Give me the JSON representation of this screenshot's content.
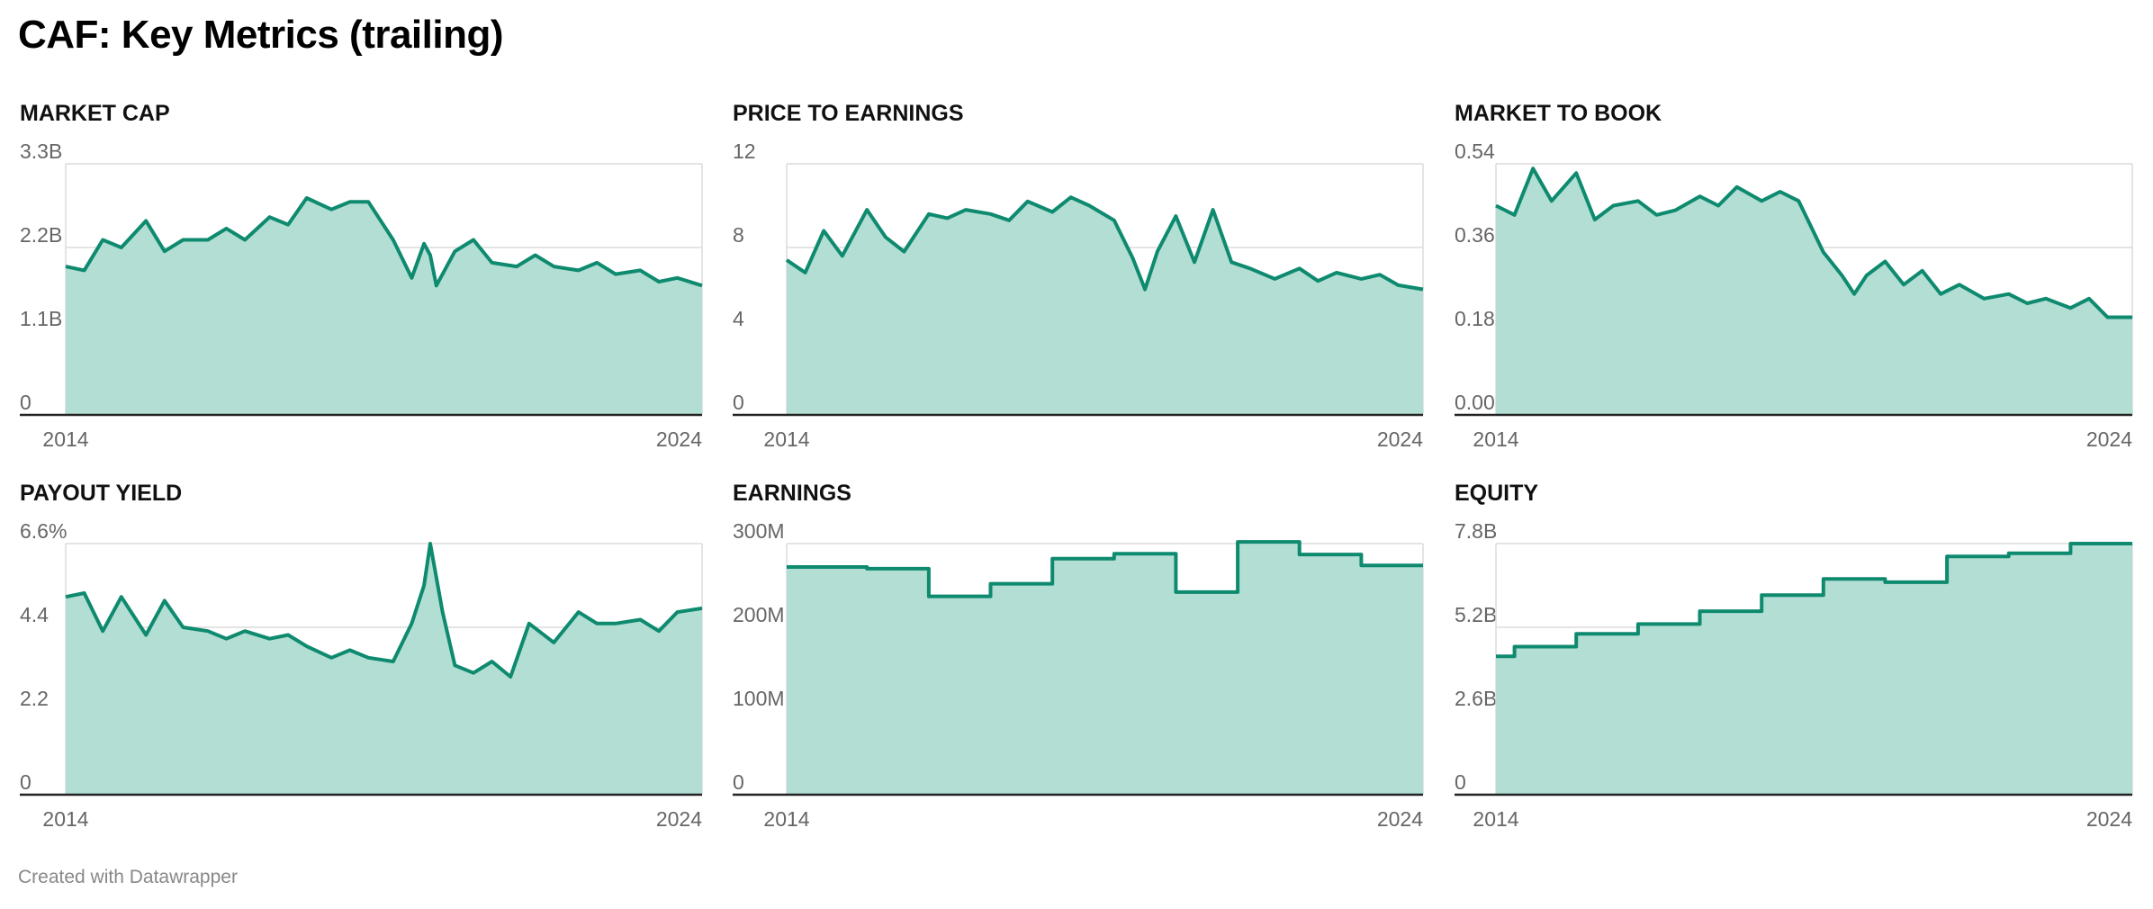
{
  "title": "CAF: Key Metrics (trailing)",
  "footer": "Created with Datawrapper",
  "colors": {
    "line": "#0e8a6f",
    "fill": "#b2ded4",
    "grid": "#dcdcdc",
    "axis": "#222222"
  },
  "chart_data": [
    {
      "type": "area",
      "title": "MARKET CAP",
      "x_labels": [
        "2014",
        "2024"
      ],
      "x_range": [
        2013.7,
        2024.0
      ],
      "y_ticks": [
        0,
        1.1,
        2.2,
        3.3
      ],
      "y_tick_labels": [
        "0",
        "1.1B",
        "2.2B",
        "3.3B"
      ],
      "ylim": [
        0,
        3.3
      ],
      "unit": "B",
      "x": [
        2013.7,
        2014.0,
        2014.3,
        2014.6,
        2015.0,
        2015.3,
        2015.6,
        2016.0,
        2016.3,
        2016.6,
        2017.0,
        2017.3,
        2017.6,
        2018.0,
        2018.3,
        2018.6,
        2019.0,
        2019.3,
        2019.5,
        2019.6,
        2019.7,
        2020.0,
        2020.3,
        2020.6,
        2021.0,
        2021.3,
        2021.6,
        2022.0,
        2022.3,
        2022.6,
        2023.0,
        2023.3,
        2023.6,
        2024.0
      ],
      "y": [
        1.95,
        1.9,
        2.3,
        2.2,
        2.55,
        2.15,
        2.3,
        2.3,
        2.45,
        2.3,
        2.6,
        2.5,
        2.85,
        2.7,
        2.8,
        2.8,
        2.3,
        1.8,
        2.25,
        2.1,
        1.7,
        2.15,
        2.3,
        2.0,
        1.95,
        2.1,
        1.95,
        1.9,
        2.0,
        1.85,
        1.9,
        1.75,
        1.8,
        1.7
      ]
    },
    {
      "type": "area",
      "title": "PRICE TO EARNINGS",
      "x_labels": [
        "2014",
        "2024"
      ],
      "x_range": [
        2013.7,
        2024.0
      ],
      "y_ticks": [
        0,
        4,
        8,
        12
      ],
      "y_tick_labels": [
        "0",
        "4",
        "8",
        "12"
      ],
      "ylim": [
        0,
        12
      ],
      "unit": "",
      "x": [
        2013.7,
        2014.0,
        2014.3,
        2014.6,
        2015.0,
        2015.3,
        2015.6,
        2016.0,
        2016.3,
        2016.6,
        2017.0,
        2017.3,
        2017.6,
        2018.0,
        2018.3,
        2018.6,
        2019.0,
        2019.3,
        2019.5,
        2019.7,
        2020.0,
        2020.3,
        2020.6,
        2020.9,
        2021.2,
        2021.6,
        2022.0,
        2022.3,
        2022.6,
        2023.0,
        2023.3,
        2023.6,
        2024.0
      ],
      "y": [
        7.4,
        6.8,
        8.8,
        7.6,
        9.8,
        8.5,
        7.8,
        9.6,
        9.4,
        9.8,
        9.6,
        9.3,
        10.2,
        9.7,
        10.4,
        10.0,
        9.3,
        7.5,
        6.0,
        7.8,
        9.5,
        7.3,
        9.8,
        7.3,
        7.0,
        6.5,
        7.0,
        6.4,
        6.8,
        6.5,
        6.7,
        6.2,
        6.0
      ]
    },
    {
      "type": "area",
      "title": "MARKET TO BOOK",
      "x_labels": [
        "2014",
        "2024"
      ],
      "x_range": [
        2013.7,
        2024.0
      ],
      "y_ticks": [
        0,
        0.18,
        0.36,
        0.54
      ],
      "y_tick_labels": [
        "0.00",
        "0.18",
        "0.36",
        "0.54"
      ],
      "ylim": [
        0,
        0.54
      ],
      "unit": "",
      "x": [
        2013.7,
        2014.0,
        2014.3,
        2014.6,
        2015.0,
        2015.3,
        2015.6,
        2016.0,
        2016.3,
        2016.6,
        2017.0,
        2017.3,
        2017.6,
        2018.0,
        2018.3,
        2018.6,
        2019.0,
        2019.3,
        2019.5,
        2019.7,
        2020.0,
        2020.3,
        2020.6,
        2020.9,
        2021.2,
        2021.6,
        2022.0,
        2022.3,
        2022.6,
        2023.0,
        2023.3,
        2023.6,
        2024.0
      ],
      "y": [
        0.45,
        0.43,
        0.53,
        0.46,
        0.52,
        0.42,
        0.45,
        0.46,
        0.43,
        0.44,
        0.47,
        0.45,
        0.49,
        0.46,
        0.48,
        0.46,
        0.35,
        0.3,
        0.26,
        0.3,
        0.33,
        0.28,
        0.31,
        0.26,
        0.28,
        0.25,
        0.26,
        0.24,
        0.25,
        0.23,
        0.25,
        0.21,
        0.21
      ]
    },
    {
      "type": "area",
      "title": "PAYOUT YIELD",
      "x_labels": [
        "2014",
        "2024"
      ],
      "x_range": [
        2013.7,
        2024.0
      ],
      "y_ticks": [
        0,
        2.2,
        4.4,
        6.6
      ],
      "y_tick_labels": [
        "0",
        "2.2",
        "4.4",
        "6.6%"
      ],
      "ylim": [
        0,
        6.6
      ],
      "unit": "%",
      "x": [
        2013.7,
        2014.0,
        2014.3,
        2014.6,
        2015.0,
        2015.3,
        2015.6,
        2016.0,
        2016.3,
        2016.6,
        2017.0,
        2017.3,
        2017.6,
        2018.0,
        2018.3,
        2018.6,
        2019.0,
        2019.3,
        2019.5,
        2019.6,
        2019.8,
        2020.0,
        2020.3,
        2020.6,
        2020.9,
        2021.2,
        2021.6,
        2022.0,
        2022.3,
        2022.6,
        2023.0,
        2023.3,
        2023.6,
        2024.0
      ],
      "y": [
        5.2,
        5.3,
        4.3,
        5.2,
        4.2,
        5.1,
        4.4,
        4.3,
        4.1,
        4.3,
        4.1,
        4.2,
        3.9,
        3.6,
        3.8,
        3.6,
        3.5,
        4.5,
        5.5,
        6.6,
        4.8,
        3.4,
        3.2,
        3.5,
        3.1,
        4.5,
        4.0,
        4.8,
        4.5,
        4.5,
        4.6,
        4.3,
        4.8,
        4.9
      ]
    },
    {
      "type": "area",
      "title": "EARNINGS",
      "x_labels": [
        "2014",
        "2024"
      ],
      "x_range": [
        2013.7,
        2024.0
      ],
      "y_ticks": [
        0,
        100,
        200,
        300
      ],
      "y_tick_labels": [
        "0",
        "100M",
        "200M",
        "300M"
      ],
      "ylim": [
        0,
        300
      ],
      "unit": "M",
      "step": true,
      "x": [
        2013.7,
        2015.0,
        2016.0,
        2017.0,
        2018.0,
        2019.0,
        2020.0,
        2021.0,
        2022.0,
        2023.0
      ],
      "y": [
        272,
        270,
        237,
        252,
        282,
        288,
        242,
        302,
        287,
        274
      ],
      "x_end": 2024.0
    },
    {
      "type": "area",
      "title": "EQUITY",
      "x_labels": [
        "2014",
        "2024"
      ],
      "x_range": [
        2013.7,
        2024.0
      ],
      "y_ticks": [
        0,
        2.6,
        5.2,
        7.8
      ],
      "y_tick_labels": [
        "0",
        "2.6B",
        "5.2B",
        "7.8B"
      ],
      "ylim": [
        0,
        7.8
      ],
      "unit": "B",
      "step": true,
      "x": [
        2013.7,
        2014.0,
        2015.0,
        2016.0,
        2017.0,
        2018.0,
        2019.0,
        2020.0,
        2021.0,
        2022.0,
        2023.0
      ],
      "y": [
        4.3,
        4.6,
        5.0,
        5.3,
        5.7,
        6.2,
        6.7,
        6.6,
        7.4,
        7.5,
        7.8
      ],
      "x_end": 2024.0
    }
  ]
}
